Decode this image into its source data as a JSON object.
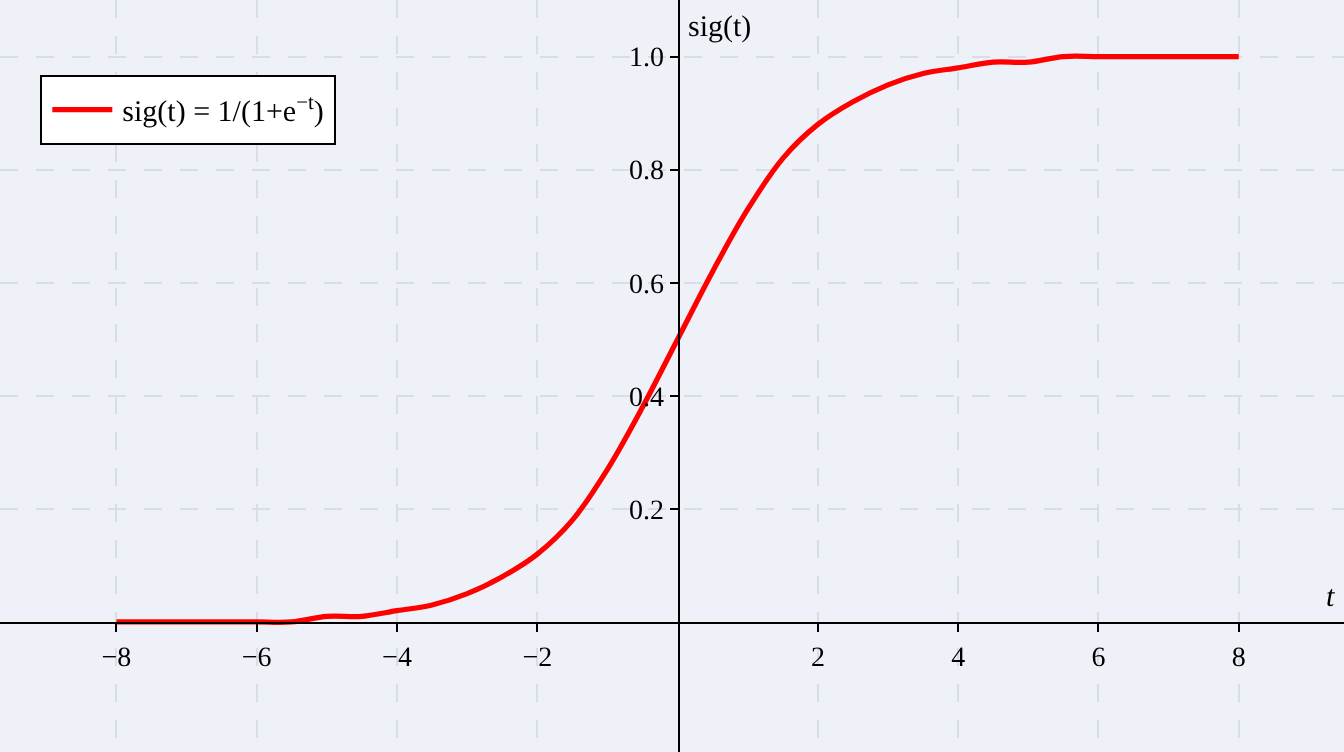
{
  "chart_data": {
    "type": "line",
    "xlabel": "t",
    "ylabel": "sig(t)",
    "x": [
      -8,
      -7.5,
      -7,
      -6.5,
      -6,
      -5.5,
      -5,
      -4.5,
      -4,
      -3.5,
      -3,
      -2.5,
      -2,
      -1.5,
      -1,
      -0.5,
      0,
      0.5,
      1,
      1.5,
      2,
      2.5,
      3,
      3.5,
      4,
      4.5,
      5,
      5.5,
      6,
      6.5,
      7,
      7.5,
      8
    ],
    "series": [
      {
        "name": "sig(t) = 1/(1+e$^{−t}$)",
        "color": "#ff0000",
        "values": [
          0,
          0,
          0,
          0,
          0,
          0,
          0.01,
          0.01,
          0.02,
          0.03,
          0.05,
          0.08,
          0.12,
          0.18,
          0.27,
          0.38,
          0.5,
          0.62,
          0.73,
          0.82,
          0.88,
          0.92,
          0.95,
          0.97,
          0.98,
          0.99,
          0.99,
          1,
          1,
          1,
          1,
          1,
          1
        ]
      }
    ],
    "xlim": [
      -9.66,
      9.5
    ],
    "ylim": [
      -0.23,
      1.1
    ],
    "xticks": [
      {
        "value": -8,
        "label": "−8"
      },
      {
        "value": -6,
        "label": "−6"
      },
      {
        "value": -4,
        "label": "−4"
      },
      {
        "value": -2,
        "label": "−2"
      },
      2,
      4,
      6,
      8
    ],
    "yticks": [
      0.2,
      0.4,
      0.6,
      0.8,
      {
        "value": 1,
        "label": "1.0"
      }
    ],
    "grid": true,
    "legend": "top left",
    "marker": "none",
    "line_style": "solid"
  }
}
